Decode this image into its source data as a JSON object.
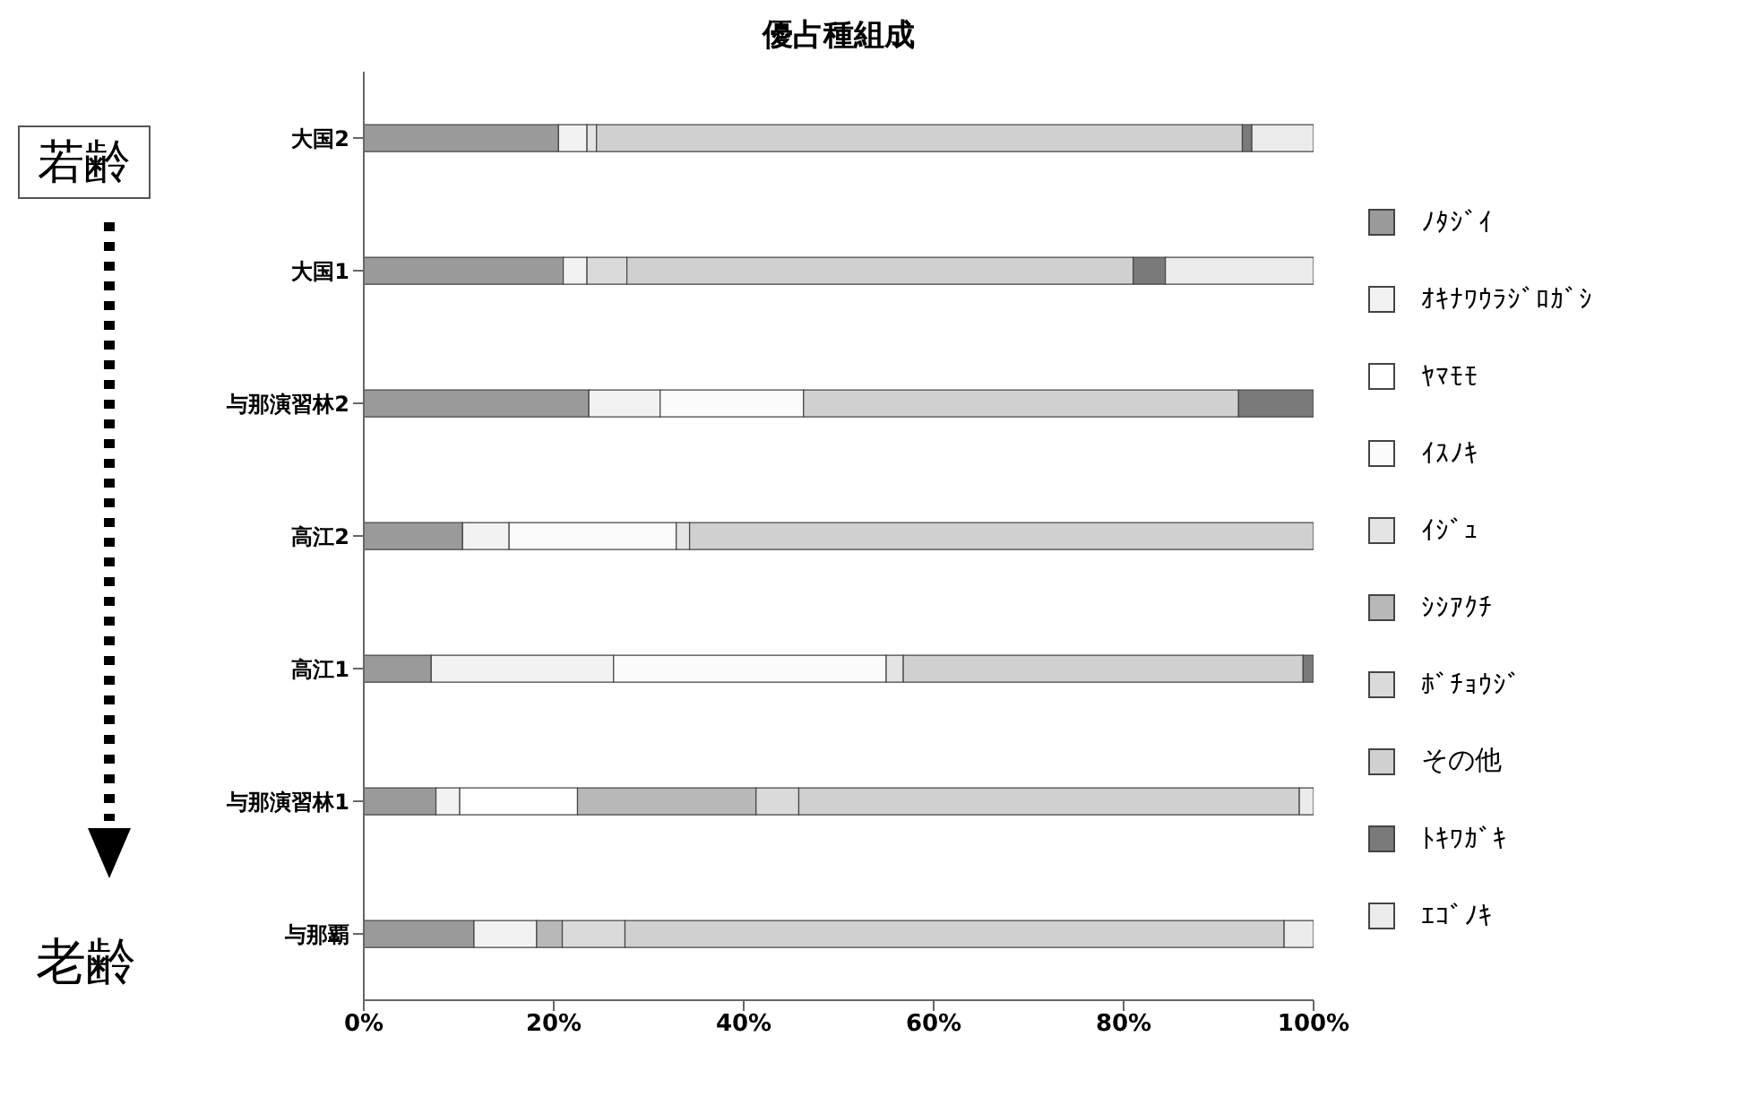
{
  "chart_data": {
    "type": "bar",
    "orientation": "horizontal",
    "stacked": true,
    "title": "優占種組成",
    "annotations": [
      "若齢",
      "老齢"
    ],
    "categories": [
      "大国2",
      "大国1",
      "与那演習林2",
      "高江2",
      "高江1",
      "与那演習林1",
      "与那覇"
    ],
    "series": [
      {
        "name": "ﾉﾀｼﾞｲ",
        "color": "#9a9a9a",
        "values": [
          20.5,
          21,
          23.7,
          10.4,
          7.1,
          7.6,
          11.6
        ]
      },
      {
        "name": "ｵｷﾅﾜｳﾗｼﾞﾛｶﾞｼ",
        "color": "#f2f2f2",
        "values": [
          3,
          2.5,
          7.5,
          4.9,
          19.2,
          2.5,
          6.6
        ]
      },
      {
        "name": "ﾔﾏﾓﾓ",
        "color": "#ffffff",
        "values": [
          0,
          0,
          0,
          0,
          0,
          12.4,
          0
        ]
      },
      {
        "name": "ｲｽﾉｷ",
        "color": "#fbfbfb",
        "values": [
          0,
          0,
          15.1,
          17.6,
          28.7,
          0,
          0
        ]
      },
      {
        "name": "ｲｼﾞｭ",
        "color": "#e4e4e4",
        "values": [
          1,
          0,
          0,
          1.4,
          1.8,
          0,
          0
        ]
      },
      {
        "name": "ｼｼｱｸﾁ",
        "color": "#b8b8b8",
        "values": [
          0,
          0,
          0,
          0,
          0,
          18.8,
          2.7
        ]
      },
      {
        "name": "ﾎﾞﾁｮｳｼﾞ",
        "color": "#dadada",
        "values": [
          0,
          4.2,
          0,
          0,
          0,
          4.5,
          6.6
        ]
      },
      {
        "name": "その他",
        "color": "#d0d0d0",
        "values": [
          68,
          53.3,
          45.8,
          65.7,
          42.1,
          52.7,
          69.4
        ]
      },
      {
        "name": "ﾄｷﾜｶﾞｷ",
        "color": "#7a7a7a",
        "values": [
          1,
          3.4,
          7.9,
          0,
          1.1,
          0,
          0
        ]
      },
      {
        "name": "ｴｺﾞﾉｷ",
        "color": "#ebebeb",
        "values": [
          6.5,
          15.6,
          0,
          0,
          0,
          1.5,
          3.1
        ]
      }
    ],
    "xlim": [
      0,
      100
    ],
    "xticks": [
      {
        "value": 0,
        "label": "0%"
      },
      {
        "value": 20,
        "label": "20%"
      },
      {
        "value": 40,
        "label": "40%"
      },
      {
        "value": 60,
        "label": "60%"
      },
      {
        "value": 80,
        "label": "80%"
      },
      {
        "value": 100,
        "label": "100%"
      }
    ],
    "legend": "right",
    "grid": false
  }
}
